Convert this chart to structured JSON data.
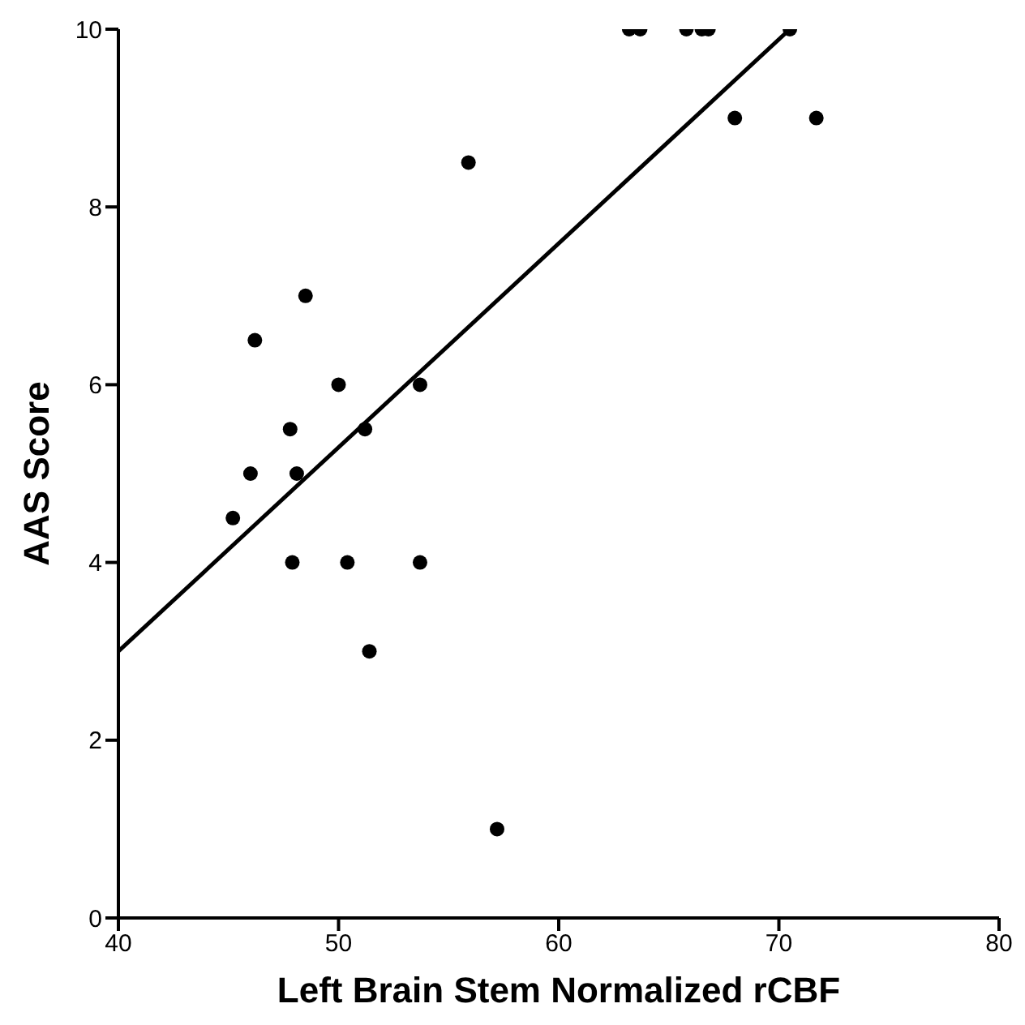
{
  "chart_data": {
    "type": "scatter",
    "xlabel": "Left Brain Stem Normalized rCBF",
    "ylabel": "AAS Score",
    "xlim": [
      40,
      80
    ],
    "xticks": [
      40,
      50,
      60,
      70,
      80
    ],
    "ylim": [
      0,
      10
    ],
    "yticks": [
      0,
      2,
      4,
      6,
      8,
      10
    ],
    "grid": false,
    "legend": false,
    "marker": "circle",
    "series": [
      {
        "color": "#000000",
        "x": [
          45.2,
          46.0,
          46.2,
          47.8,
          47.9,
          48.1,
          48.5,
          50.0,
          50.4,
          51.2,
          51.4,
          53.7,
          53.7,
          55.9,
          57.2,
          63.2,
          63.7,
          65.8,
          66.5,
          66.8,
          68.0,
          70.5,
          71.7
        ],
        "values": [
          4.5,
          5,
          6.5,
          5.5,
          4,
          5,
          7,
          6,
          4,
          5.5,
          3,
          6,
          4,
          8.5,
          1,
          10,
          10,
          10,
          10,
          10,
          9,
          10,
          9
        ]
      },
      {
        "type": "line",
        "color": "#000000",
        "x": [
          40,
          70.5
        ],
        "values": [
          3,
          10
        ],
        "marker": "none",
        "line_style": "solid"
      }
    ]
  }
}
